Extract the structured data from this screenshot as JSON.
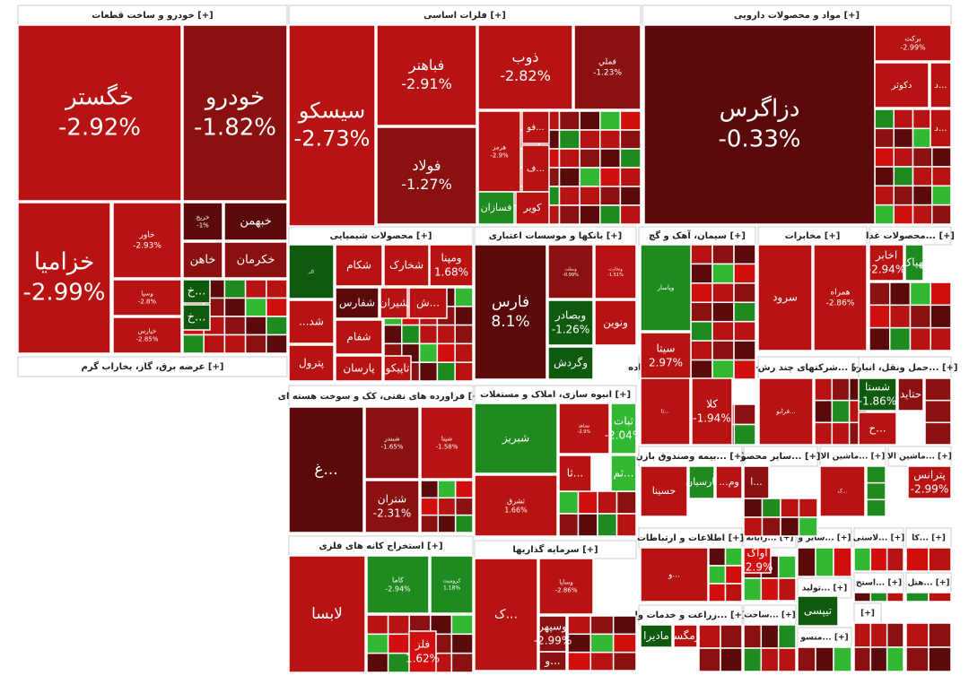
{
  "colors": {
    "deep_red": "#5a0a0a",
    "dark_red": "#8b1010",
    "red": "#b81313",
    "bright_red": "#d10f0f",
    "green": "#1f8a1f",
    "dark_green": "#0f5a0f",
    "bright_green": "#33b833",
    "header_bg": "#ffffff"
  },
  "chart_data": {
    "type": "treemap",
    "sectors": [
      {
        "name": "خودرو و ساخت قطعات [+]"
      },
      {
        "name": "فلزات اساسی [+]"
      },
      {
        "name": "مواد و محصولات دارویی [+]"
      },
      {
        "name": "عرضه برق، گاز، بخاراب گرم [+]"
      },
      {
        "name": "محصولات شیمیایی [+]"
      },
      {
        "name": "بانکها و موسسات اعتباری [+]"
      },
      {
        "name": "سیمان، آهک و گچ [+]"
      },
      {
        "name": "مخابرات [+]"
      },
      {
        "name": "محصولات غذا... [+]"
      },
      {
        "name": "فراورده های نفتی، کک و سوخت هسته ای [+]"
      },
      {
        "name": "انبوه سازی، املاک و مستغلات [+]"
      },
      {
        "name": "فعالیتهای کمکی به نهاده... [+]"
      },
      {
        "name": "شرکتهای چند رش... [+]"
      },
      {
        "name": "حمل ونقل، انبارد... [+]"
      },
      {
        "name": "بیمه وصندوق بازن... [+]"
      },
      {
        "name": "سایر محصو... [+]"
      },
      {
        "name": "ماشین الا... [+]"
      },
      {
        "name": "ماشین الا... [+]"
      },
      {
        "name": "استخراج کانه های فلزی [+]"
      },
      {
        "name": "سرمایه گذاریها [+]"
      },
      {
        "name": "اطلاعات و ارتباطات [+]"
      },
      {
        "name": "رایانه... [+]"
      },
      {
        "name": "سایر و... [+]"
      },
      {
        "name": "لاستی... [+]"
      },
      {
        "name": "کا... [+]"
      },
      {
        "name": "زراعت و خدمات وا... [+]"
      },
      {
        "name": "ساخت... [+]"
      },
      {
        "name": "تولید... [+]"
      },
      {
        "name": "استخ... [+]"
      },
      {
        "name": "هتل... [+]"
      },
      {
        "name": "منسو... [+]"
      },
      {
        "name": "[+]"
      }
    ],
    "stocks": [
      {
        "symbol": "خگستر",
        "change": "-2.92%",
        "value": -2.92
      },
      {
        "symbol": "خودرو",
        "change": "-1.82%",
        "value": -1.82
      },
      {
        "symbol": "خزامیا",
        "change": "-2.99%",
        "value": -2.99
      },
      {
        "symbol": "خاور",
        "change": "-2.93%",
        "value": -2.93
      },
      {
        "symbol": "خبهمن",
        "change": ""
      },
      {
        "symbol": "خاهن",
        "change": ""
      },
      {
        "symbol": "خکرمان",
        "change": ""
      },
      {
        "symbol": "خ...",
        "change": ""
      },
      {
        "symbol": "خ...",
        "change": ""
      },
      {
        "symbol": "وسپا",
        "change": "-2.8%",
        "value": -2.8
      },
      {
        "symbol": "خریخ",
        "change": "-1%",
        "value": -1
      },
      {
        "symbol": "خپارس",
        "change": "-2.85%",
        "value": -2.85
      },
      {
        "symbol": "سیسکو",
        "change": "-2.73%",
        "value": -2.73
      },
      {
        "symbol": "فباهنر",
        "change": "-2.91%",
        "value": -2.91
      },
      {
        "symbol": "فولاد",
        "change": "-1.27%",
        "value": -1.27
      },
      {
        "symbol": "ذوب",
        "change": "-2.82%",
        "value": -2.82
      },
      {
        "symbol": "فملي",
        "change": "-1.23%",
        "value": -1.23
      },
      {
        "symbol": "هرمز",
        "change": "-2.9%",
        "value": -2.9
      },
      {
        "symbol": "فو...",
        "change": ""
      },
      {
        "symbol": "ف...",
        "change": ""
      },
      {
        "symbol": "فسازان",
        "change": ""
      },
      {
        "symbol": "کویر",
        "change": ""
      },
      {
        "symbol": "دزاگرس",
        "change": "-0.33%",
        "value": -0.33
      },
      {
        "symbol": "برکت",
        "change": "-2.99%",
        "value": -2.99
      },
      {
        "symbol": "دکوثر",
        "change": ""
      },
      {
        "symbol": "د...",
        "change": ""
      },
      {
        "symbol": "د...",
        "change": ""
      },
      {
        "symbol": "د...",
        "change": ""
      },
      {
        "symbol": "ومپنا",
        "change": "1.68%",
        "value": 1.68
      },
      {
        "symbol": "شخارک",
        "change": ""
      },
      {
        "symbol": "شکام",
        "change": ""
      },
      {
        "symbol": "شفارس",
        "change": ""
      },
      {
        "symbol": "شیران",
        "change": ""
      },
      {
        "symbol": "ش...",
        "change": ""
      },
      {
        "symbol": "...شد",
        "change": ""
      },
      {
        "symbol": "شفام",
        "change": ""
      },
      {
        "symbol": "پترول",
        "change": ""
      },
      {
        "symbol": "پارسان",
        "change": ""
      },
      {
        "symbol": "تاپیکو",
        "change": ""
      },
      {
        "symbol": "کلر",
        "change": ""
      },
      {
        "symbol": "فارس",
        "change": "8.1%",
        "value": 8.1
      },
      {
        "symbol": "وبملت",
        "change": "-0.99%",
        "value": -0.99
      },
      {
        "symbol": "وتجارت",
        "change": "-1.51%",
        "value": -1.51
      },
      {
        "symbol": "وبصادر",
        "change": "-1.26%",
        "value": -1.26
      },
      {
        "symbol": "ونوین",
        "change": ""
      },
      {
        "symbol": "وگردش",
        "change": ""
      },
      {
        "symbol": "وپاسار",
        "change": ""
      },
      {
        "symbol": "سیتا",
        "change": "2.97%",
        "value": 2.97
      },
      {
        "symbol": "سرود",
        "change": ""
      },
      {
        "symbol": "همراه",
        "change": "-2.86%",
        "value": -2.86
      },
      {
        "symbol": "اخابر",
        "change": "-2.94%",
        "value": -2.94
      },
      {
        "symbol": "بهپاک",
        "change": ""
      },
      {
        "symbol": "غ...",
        "change": ""
      },
      {
        "symbol": "شبندر",
        "change": "-1.65%",
        "value": -1.65
      },
      {
        "symbol": "شپنا",
        "change": "-1.58%",
        "value": -1.58
      },
      {
        "symbol": "شتران",
        "change": "-2.31%",
        "value": -2.31
      },
      {
        "symbol": "شبریز",
        "change": ""
      },
      {
        "symbol": "ثشرق",
        "change": "1.66%",
        "value": 1.66
      },
      {
        "symbol": "ثشاهد",
        "change": "-2.9%",
        "value": -2.9
      },
      {
        "symbol": "ثبات",
        "change": "-2.04%",
        "value": -2.04
      },
      {
        "symbol": "ثا...",
        "change": ""
      },
      {
        "symbol": "ثم...",
        "change": ""
      },
      {
        "symbol": "ثا...",
        "change": ""
      },
      {
        "symbol": "کلا",
        "change": "-1.94%",
        "value": -1.94
      },
      {
        "symbol": "فرابو...",
        "change": ""
      },
      {
        "symbol": "شستا",
        "change": "-1.86%",
        "value": -1.86
      },
      {
        "symbol": "حتاید",
        "change": ""
      },
      {
        "symbol": "ح...",
        "change": ""
      },
      {
        "symbol": "حسینا",
        "change": ""
      },
      {
        "symbol": "پارسیان",
        "change": ""
      },
      {
        "symbol": "...وم",
        "change": ""
      },
      {
        "symbol": "ا...",
        "change": ""
      },
      {
        "symbol": "ک...",
        "change": ""
      },
      {
        "symbol": "پترانس",
        "change": "-2.99%",
        "value": -2.99
      },
      {
        "symbol": "لابسا",
        "change": ""
      },
      {
        "symbol": "کاما",
        "change": "-2.94%",
        "value": -2.94
      },
      {
        "symbol": "کرومیت",
        "change": "1.18%",
        "value": 1.18
      },
      {
        "symbol": "فلز",
        "change": "1.62%",
        "value": 1.62
      },
      {
        "symbol": "ک...",
        "change": ""
      },
      {
        "symbol": "وساپا",
        "change": "-2.86%",
        "value": -2.86
      },
      {
        "symbol": "وسپهر",
        "change": "-2.99%",
        "value": -2.99
      },
      {
        "symbol": "و...",
        "change": ""
      },
      {
        "symbol": "و...",
        "change": ""
      },
      {
        "symbol": "آواک",
        "change": "-2.9%",
        "value": -2.9
      },
      {
        "symbol": "تیپسی",
        "change": ""
      },
      {
        "symbol": "مادیرا",
        "change": ""
      },
      {
        "symbol": "زمگسا",
        "change": ""
      },
      {
        "symbol": "ز...",
        "change": ""
      }
    ]
  }
}
